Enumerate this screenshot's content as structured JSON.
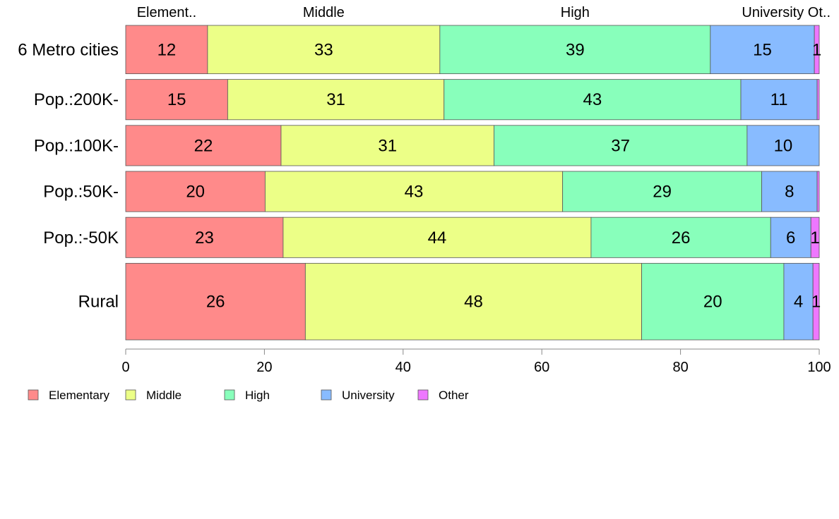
{
  "chart_data": {
    "type": "bar",
    "orientation": "horizontal",
    "stacked": true,
    "categories": [
      "6 Metro cities",
      "Pop.:200K-",
      "Pop.:100K-",
      "Pop.:50K-",
      "Pop.:-50K",
      "Rural"
    ],
    "series": [
      {
        "name": "Elementary",
        "color": "#ff8a8a",
        "values": [
          11.8,
          14.7,
          22.4,
          20.1,
          22.7,
          25.9
        ]
      },
      {
        "name": "Middle",
        "color": "#ecff87",
        "values": [
          33.5,
          31.2,
          30.7,
          42.9,
          44.4,
          48.5
        ]
      },
      {
        "name": "High",
        "color": "#88ffbb",
        "values": [
          39.0,
          42.8,
          36.5,
          28.7,
          25.9,
          20.5
        ]
      },
      {
        "name": "University",
        "color": "#88bbff",
        "values": [
          15.0,
          11.0,
          10.4,
          8.0,
          5.8,
          4.2
        ]
      },
      {
        "name": "Other",
        "color": "#ee77ff",
        "values": [
          0.7,
          0.3,
          0.0,
          0.3,
          1.2,
          0.9
        ]
      }
    ],
    "data_labels": [
      [
        "12",
        "33",
        "39",
        "15",
        "1"
      ],
      [
        "15",
        "31",
        "43",
        "11",
        ""
      ],
      [
        "22",
        "31",
        "37",
        "10",
        ""
      ],
      [
        "20",
        "43",
        "29",
        "8",
        ""
      ],
      [
        "23",
        "44",
        "26",
        "6",
        "1"
      ],
      [
        "26",
        "48",
        "20",
        "4",
        "1"
      ]
    ],
    "category_weights": [
      1.2,
      1.0,
      1.0,
      1.0,
      1.0,
      1.9
    ],
    "top_labels": [
      "Element..",
      "Middle",
      "High",
      "University Ot.."
    ],
    "xlim": [
      0,
      100
    ],
    "xticks": [
      "0",
      "20",
      "40",
      "60",
      "80",
      "100"
    ],
    "xlabel": "",
    "ylabel": "",
    "title": "",
    "legend": {
      "position": "bottom-left",
      "entries": [
        "Elementary",
        "Middle",
        "High",
        "University",
        "Other"
      ]
    }
  }
}
